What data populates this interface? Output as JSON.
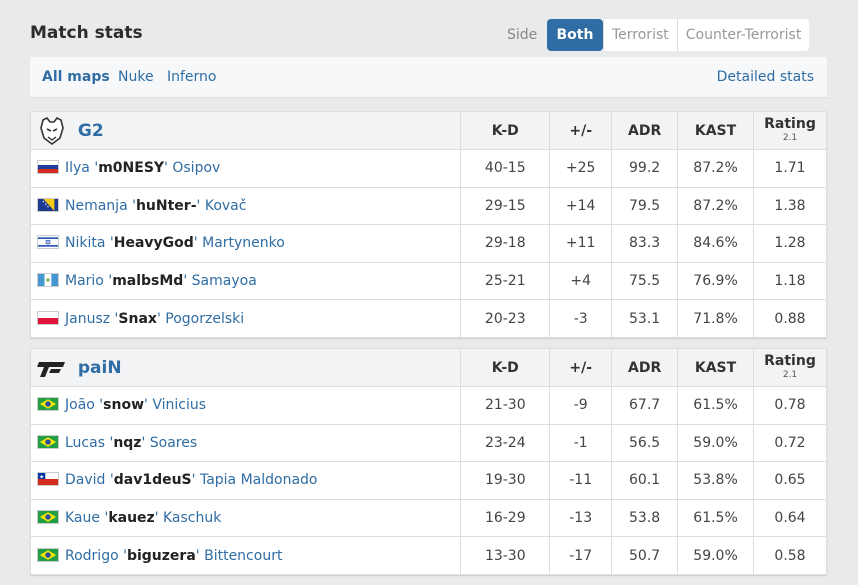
{
  "header": {
    "title": "Match stats",
    "side_label": "Side",
    "side_tabs": [
      "Both",
      "Terrorist",
      "Counter-Terrorist"
    ]
  },
  "maps": {
    "items": [
      "All maps",
      "Nuke",
      "Inferno"
    ],
    "detailed_link": "Detailed stats"
  },
  "columns": {
    "kd": "K-D",
    "diff": "+/-",
    "adr": "ADR",
    "kast": "KAST",
    "rating": "Rating",
    "rating_version": "2.1"
  },
  "teams": [
    {
      "name": "G2",
      "players": [
        {
          "flag": "ru",
          "first": "Ilya",
          "nick": "m0NESY",
          "last": "Osipov",
          "kd": "40-15",
          "diff": "+25",
          "adr": "99.2",
          "kast": "87.2%",
          "rating": "1.71"
        },
        {
          "flag": "ba",
          "first": "Nemanja",
          "nick": "huNter-",
          "last": "Kovač",
          "kd": "29-15",
          "diff": "+14",
          "adr": "79.5",
          "kast": "87.2%",
          "rating": "1.38"
        },
        {
          "flag": "il",
          "first": "Nikita",
          "nick": "HeavyGod",
          "last": "Martynenko",
          "kd": "29-18",
          "diff": "+11",
          "adr": "83.3",
          "kast": "84.6%",
          "rating": "1.28"
        },
        {
          "flag": "gt",
          "first": "Mario",
          "nick": "malbsMd",
          "last": "Samayoa",
          "kd": "25-21",
          "diff": "+4",
          "adr": "75.5",
          "kast": "76.9%",
          "rating": "1.18"
        },
        {
          "flag": "pl",
          "first": "Janusz",
          "nick": "Snax",
          "last": "Pogorzelski",
          "kd": "20-23",
          "diff": "-3",
          "adr": "53.1",
          "kast": "71.8%",
          "rating": "0.88"
        }
      ]
    },
    {
      "name": "paiN",
      "players": [
        {
          "flag": "br",
          "first": "João",
          "nick": "snow",
          "last": "Vinicius",
          "kd": "21-30",
          "diff": "-9",
          "adr": "67.7",
          "kast": "61.5%",
          "rating": "0.78"
        },
        {
          "flag": "br",
          "first": "Lucas",
          "nick": "nqz",
          "last": "Soares",
          "kd": "23-24",
          "diff": "-1",
          "adr": "56.5",
          "kast": "59.0%",
          "rating": "0.72"
        },
        {
          "flag": "cl",
          "first": "David",
          "nick": "dav1deuS",
          "last": "Tapia Maldonado",
          "kd": "19-30",
          "diff": "-11",
          "adr": "60.1",
          "kast": "53.8%",
          "rating": "0.65"
        },
        {
          "flag": "br",
          "first": "Kaue",
          "nick": "kauez",
          "last": "Kaschuk",
          "kd": "16-29",
          "diff": "-13",
          "adr": "53.8",
          "kast": "61.5%",
          "rating": "0.64"
        },
        {
          "flag": "br",
          "first": "Rodrigo",
          "nick": "biguzera",
          "last": "Bittencourt",
          "kd": "13-30",
          "diff": "-17",
          "adr": "50.7",
          "kast": "59.0%",
          "rating": "0.58"
        }
      ]
    }
  ],
  "colors": {
    "accent": "#2f6da4",
    "positive": "#2a9d2a",
    "negative": "#d32020"
  }
}
